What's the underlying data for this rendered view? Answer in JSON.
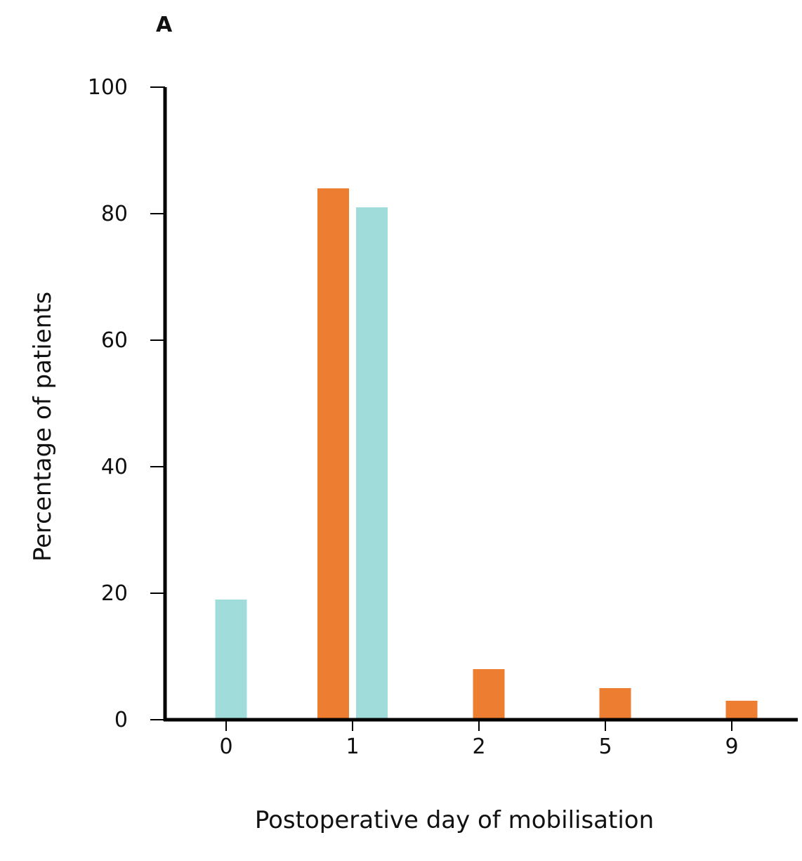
{
  "panel_label": "A",
  "chart_data": {
    "type": "bar",
    "categories": [
      "0",
      "1",
      "2",
      "5",
      "9"
    ],
    "series": [
      {
        "values": [
          0,
          84,
          8,
          5,
          3
        ],
        "color": "#ed7d31"
      },
      {
        "values": [
          19,
          81,
          0,
          0,
          0
        ],
        "color": "#a0dcda"
      }
    ],
    "xlabel": "Postoperative day of mobilisation",
    "ylabel": "Percentage of patients",
    "ylim": [
      0,
      100
    ],
    "yticks": [
      0,
      20,
      40,
      60,
      80,
      100
    ],
    "grid": false,
    "legend": "none"
  }
}
